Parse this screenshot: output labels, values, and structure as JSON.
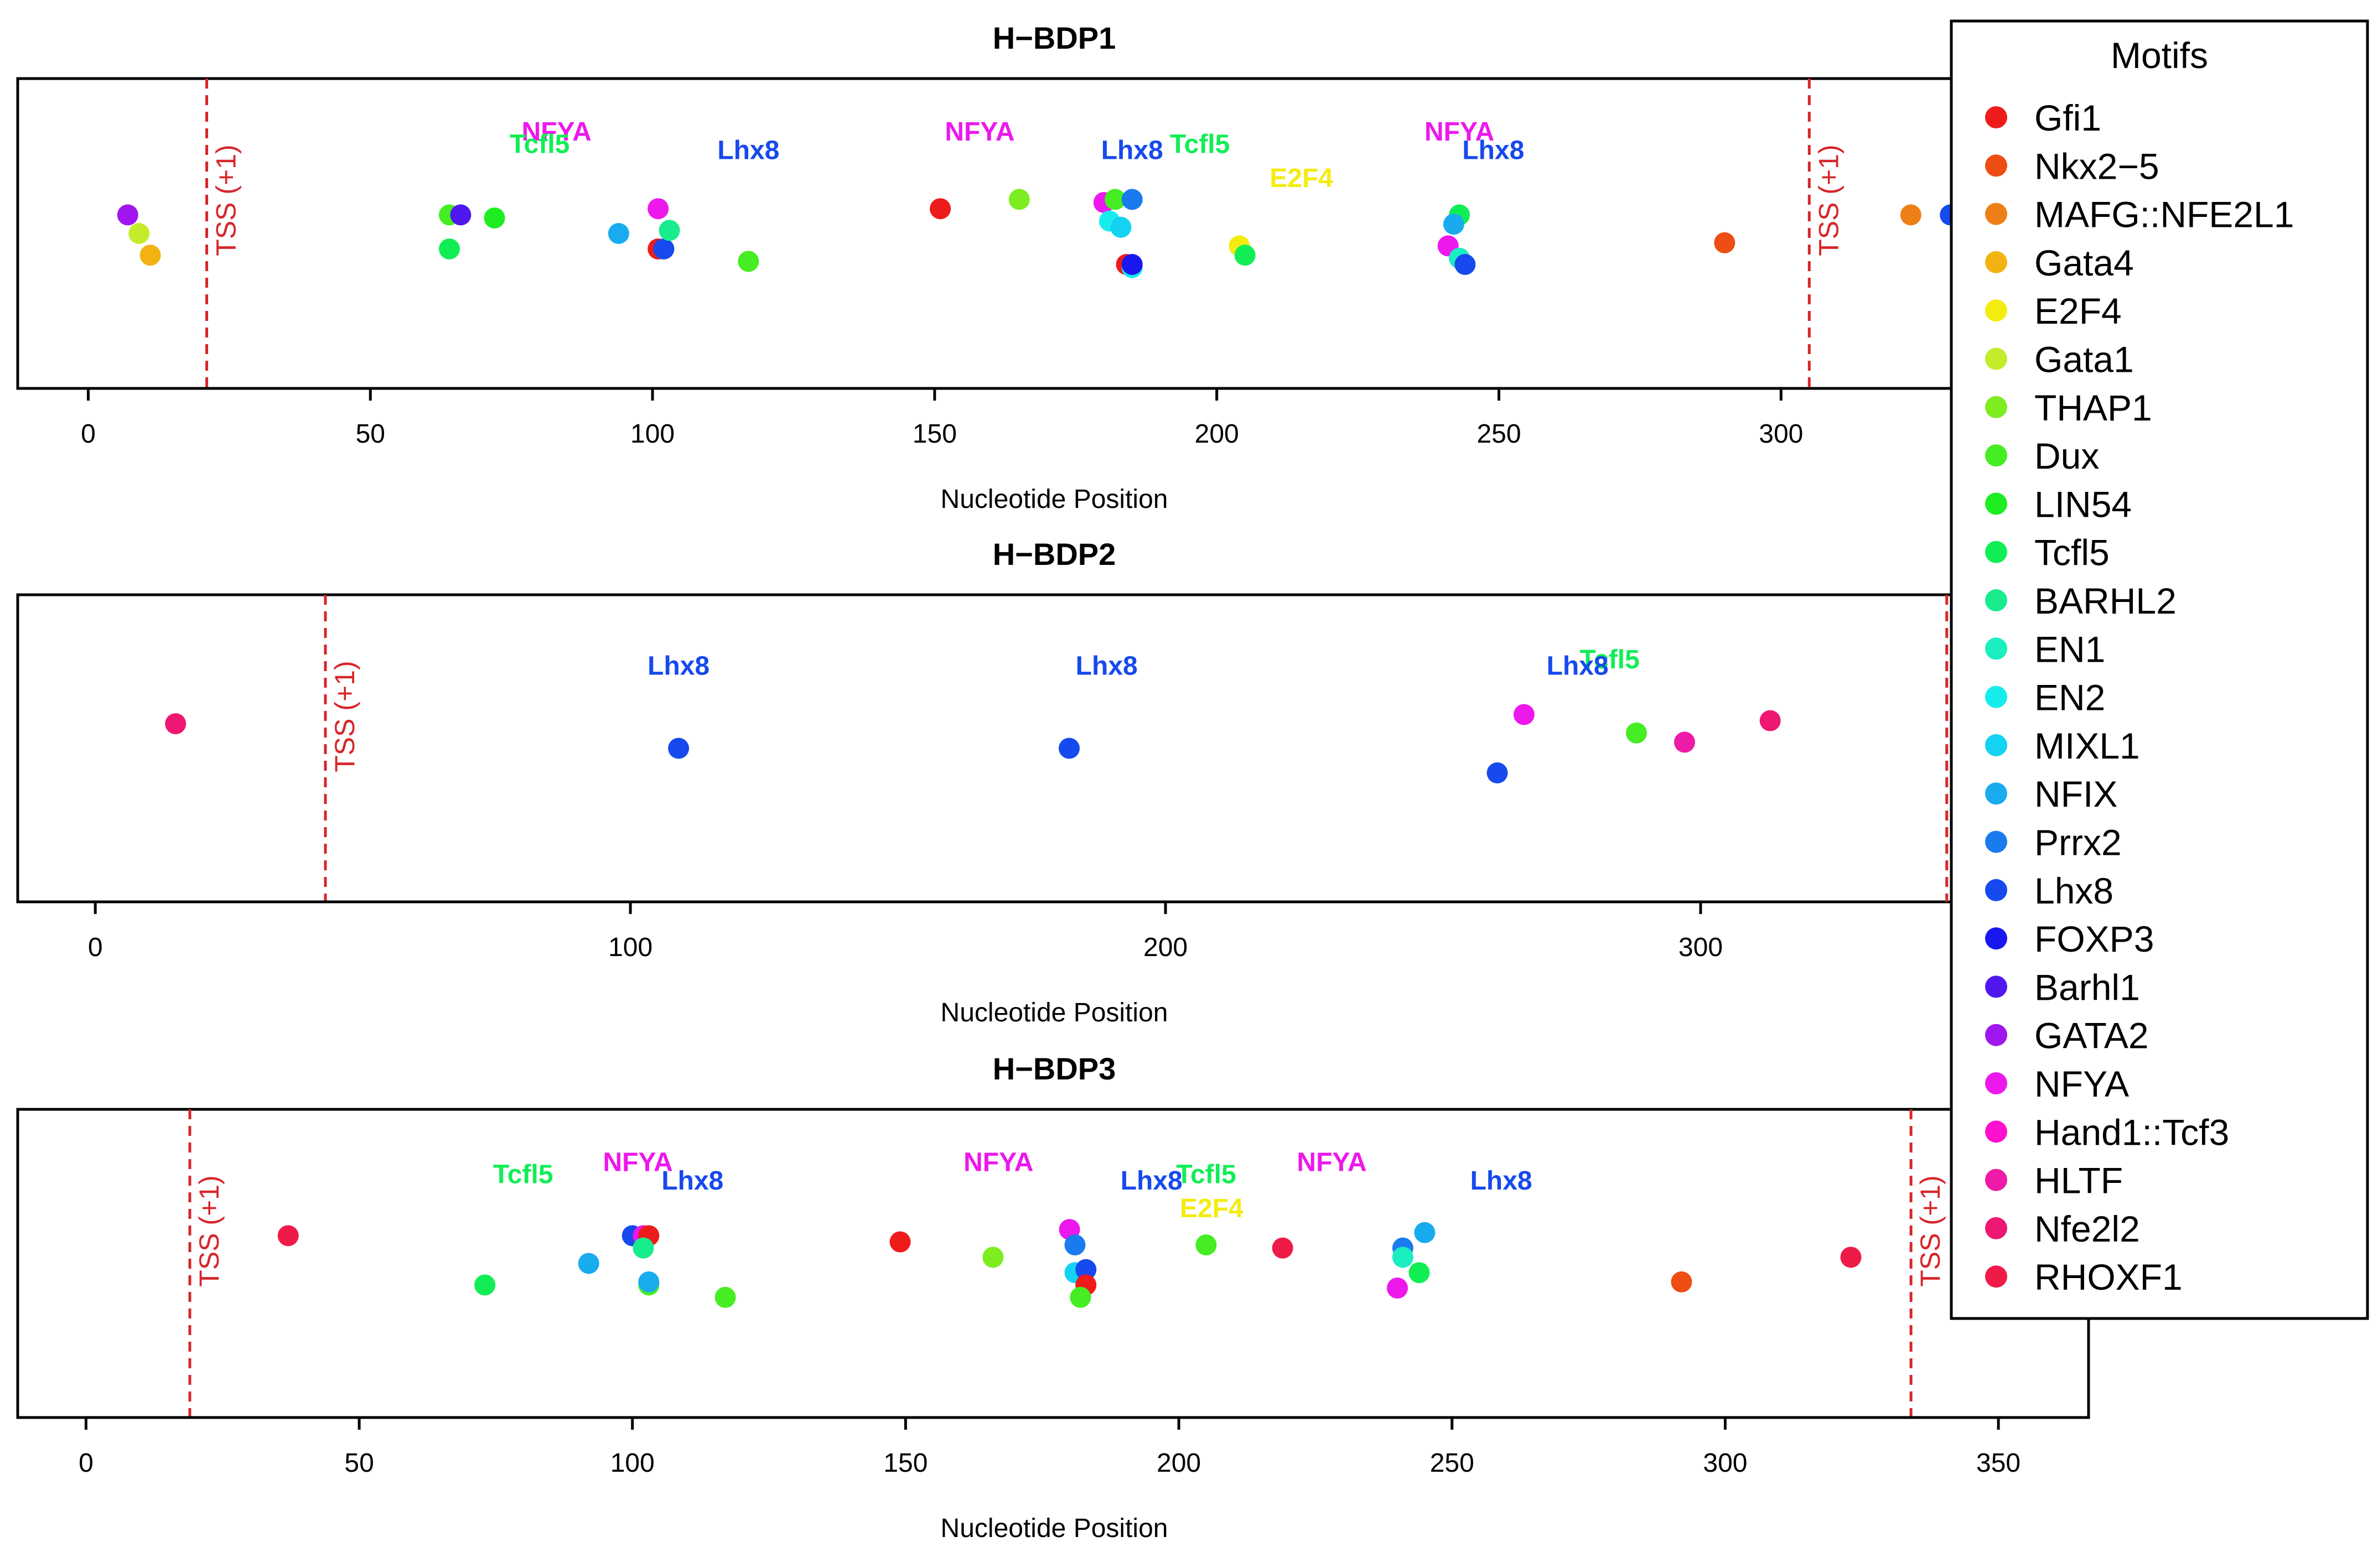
{
  "figure": {
    "legend_title": "Motifs"
  },
  "legend": [
    {
      "label": "Gfi1",
      "color": "#ee1b1b"
    },
    {
      "label": "Nkx2−5",
      "color": "#ee4d13"
    },
    {
      "label": "MAFG::NFE2L1",
      "color": "#ee7f16"
    },
    {
      "label": "Gata4",
      "color": "#f2b312"
    },
    {
      "label": "E2F4",
      "color": "#f4ec10"
    },
    {
      "label": "Gata1",
      "color": "#c5ec2a"
    },
    {
      "label": "THAP1",
      "color": "#7ded22"
    },
    {
      "label": "Dux",
      "color": "#45ed22"
    },
    {
      "label": "LIN54",
      "color": "#1eed22"
    },
    {
      "label": "Tcfl5",
      "color": "#11ee55"
    },
    {
      "label": "BARHL2",
      "color": "#19ec8c"
    },
    {
      "label": "EN1",
      "color": "#1beec1"
    },
    {
      "label": "EN2",
      "color": "#17ecec"
    },
    {
      "label": "MIXL1",
      "color": "#14d2f2"
    },
    {
      "label": "NFIX",
      "color": "#18acee"
    },
    {
      "label": "Prrx2",
      "color": "#1a7bee"
    },
    {
      "label": "Lhx8",
      "color": "#1649ee"
    },
    {
      "label": "FOXP3",
      "color": "#1818ee"
    },
    {
      "label": "Barhl1",
      "color": "#5018ee"
    },
    {
      "label": "GATA2",
      "color": "#a016ee"
    },
    {
      "label": "NFYA",
      "color": "#ec18ec"
    },
    {
      "label": "Hand1::Tcf3",
      "color": "#ff10cf"
    },
    {
      "label": "HLTF",
      "color": "#ee1aa8"
    },
    {
      "label": "Nfe2l2",
      "color": "#ee1771"
    },
    {
      "label": "RHOXF1",
      "color": "#ee1b49"
    }
  ],
  "chart_data": [
    {
      "type": "scatter",
      "title": "H−BDP1",
      "xlabel": "Nucleotide Position",
      "ylabel": "",
      "xlim": [
        -12.5,
        354.5
      ],
      "ylim": [
        0,
        1
      ],
      "xticks": [
        0,
        50,
        100,
        150,
        200,
        250,
        300
      ],
      "tss_label": "TSS (+1)",
      "tss_positions": [
        21,
        305
      ],
      "points": [
        {
          "x": 7,
          "y": 0.56,
          "motif": "GATA2"
        },
        {
          "x": 9,
          "y": 0.5,
          "motif": "Gata1"
        },
        {
          "x": 11,
          "y": 0.43,
          "motif": "Gata4"
        },
        {
          "x": 64,
          "y": 0.56,
          "motif": "Dux"
        },
        {
          "x": 64,
          "y": 0.45,
          "motif": "Tcfl5"
        },
        {
          "x": 66,
          "y": 0.56,
          "motif": "Barhl1"
        },
        {
          "x": 72,
          "y": 0.55,
          "motif": "LIN54"
        },
        {
          "x": 94,
          "y": 0.5,
          "motif": "NFIX"
        },
        {
          "x": 101,
          "y": 0.58,
          "motif": "NFYA"
        },
        {
          "x": 101,
          "y": 0.45,
          "motif": "Gfi1"
        },
        {
          "x": 102,
          "y": 0.45,
          "motif": "Lhx8"
        },
        {
          "x": 103,
          "y": 0.51,
          "motif": "BARHL2"
        },
        {
          "x": 117,
          "y": 0.41,
          "motif": "Dux"
        },
        {
          "x": 151,
          "y": 0.58,
          "motif": "Gfi1"
        },
        {
          "x": 165,
          "y": 0.61,
          "motif": "THAP1"
        },
        {
          "x": 180,
          "y": 0.6,
          "motif": "NFYA"
        },
        {
          "x": 181,
          "y": 0.54,
          "motif": "EN2"
        },
        {
          "x": 182,
          "y": 0.61,
          "motif": "Dux"
        },
        {
          "x": 183,
          "y": 0.52,
          "motif": "MIXL1"
        },
        {
          "x": 184,
          "y": 0.4,
          "motif": "Gfi1"
        },
        {
          "x": 185,
          "y": 0.39,
          "motif": "EN2"
        },
        {
          "x": 185,
          "y": 0.61,
          "motif": "Prrx2"
        },
        {
          "x": 185,
          "y": 0.4,
          "motif": "FOXP3"
        },
        {
          "x": 204,
          "y": 0.46,
          "motif": "E2F4"
        },
        {
          "x": 205,
          "y": 0.43,
          "motif": "Tcfl5"
        },
        {
          "x": 243,
          "y": 0.56,
          "motif": "Tcfl5"
        },
        {
          "x": 242,
          "y": 0.53,
          "motif": "NFIX"
        },
        {
          "x": 241,
          "y": 0.46,
          "motif": "NFYA"
        },
        {
          "x": 243,
          "y": 0.42,
          "motif": "EN1"
        },
        {
          "x": 244,
          "y": 0.4,
          "motif": "Lhx8"
        },
        {
          "x": 290,
          "y": 0.47,
          "motif": "Nkx2−5"
        },
        {
          "x": 323,
          "y": 0.56,
          "motif": "MAFG::NFE2L1"
        },
        {
          "x": 330,
          "y": 0.56,
          "motif": "Lhx8"
        }
      ],
      "annotations": [
        {
          "text": "NFYA",
          "x": 83,
          "y": 0.8,
          "motif": "NFYA"
        },
        {
          "text": "Tcfl5",
          "x": 80,
          "y": 0.76,
          "motif": "Tcfl5"
        },
        {
          "text": "Lhx8",
          "x": 117,
          "y": 0.74,
          "motif": "Lhx8"
        },
        {
          "text": "NFYA",
          "x": 158,
          "y": 0.8,
          "motif": "NFYA"
        },
        {
          "text": "Lhx8",
          "x": 185,
          "y": 0.74,
          "motif": "Lhx8"
        },
        {
          "text": "Tcfl5",
          "x": 197,
          "y": 0.76,
          "motif": "Tcfl5"
        },
        {
          "text": "E2F4",
          "x": 215,
          "y": 0.65,
          "motif": "E2F4"
        },
        {
          "text": "NFYA",
          "x": 243,
          "y": 0.8,
          "motif": "NFYA"
        },
        {
          "text": "Lhx8",
          "x": 249,
          "y": 0.74,
          "motif": "Lhx8"
        }
      ]
    },
    {
      "type": "scatter",
      "title": "H−BDP2",
      "xlabel": "Nucleotide Position",
      "ylabel": "",
      "xlim": [
        -14.5,
        372.5
      ],
      "ylim": [
        0,
        1
      ],
      "xticks": [
        0,
        100,
        200,
        300
      ],
      "tss_label": "TSS (+1)",
      "tss_positions": [
        43,
        346
      ],
      "points": [
        {
          "x": 15,
          "y": 0.58,
          "motif": "Nfe2l2"
        },
        {
          "x": 109,
          "y": 0.5,
          "motif": "Lhx8"
        },
        {
          "x": 182,
          "y": 0.5,
          "motif": "Lhx8"
        },
        {
          "x": 262,
          "y": 0.42,
          "motif": "Lhx8"
        },
        {
          "x": 267,
          "y": 0.61,
          "motif": "NFYA"
        },
        {
          "x": 288,
          "y": 0.55,
          "motif": "Dux"
        },
        {
          "x": 297,
          "y": 0.52,
          "motif": "HLTF"
        },
        {
          "x": 313,
          "y": 0.59,
          "motif": "Nfe2l2"
        }
      ],
      "annotations": [
        {
          "text": "Lhx8",
          "x": 109,
          "y": 0.74,
          "motif": "Lhx8"
        },
        {
          "text": "Lhx8",
          "x": 189,
          "y": 0.74,
          "motif": "Lhx8"
        },
        {
          "text": "Tcfl5",
          "x": 283,
          "y": 0.76,
          "motif": "Tcfl5"
        },
        {
          "text": "Lhx8",
          "x": 277,
          "y": 0.74,
          "motif": "Lhx8"
        }
      ]
    },
    {
      "type": "scatter",
      "title": "H−BDP3",
      "xlabel": "Nucleotide Position",
      "ylabel": "",
      "xlim": [
        -12.5,
        366.5
      ],
      "ylim": [
        0,
        1
      ],
      "xticks": [
        0,
        50,
        100,
        150,
        200,
        250,
        300,
        350
      ],
      "tss_label": "TSS (+1)",
      "tss_positions": [
        19,
        334
      ],
      "points": [
        {
          "x": 37,
          "y": 0.59,
          "motif": "RHOXF1"
        },
        {
          "x": 73,
          "y": 0.43,
          "motif": "Tcfl5"
        },
        {
          "x": 92,
          "y": 0.5,
          "motif": "NFIX"
        },
        {
          "x": 100,
          "y": 0.59,
          "motif": "Lhx8"
        },
        {
          "x": 102,
          "y": 0.59,
          "motif": "NFYA"
        },
        {
          "x": 103,
          "y": 0.59,
          "motif": "Gfi1"
        },
        {
          "x": 102,
          "y": 0.55,
          "motif": "BARHL2"
        },
        {
          "x": 103,
          "y": 0.43,
          "motif": "Dux"
        },
        {
          "x": 103,
          "y": 0.44,
          "motif": "NFIX"
        },
        {
          "x": 117,
          "y": 0.39,
          "motif": "Dux"
        },
        {
          "x": 149,
          "y": 0.57,
          "motif": "Gfi1"
        },
        {
          "x": 166,
          "y": 0.52,
          "motif": "THAP1"
        },
        {
          "x": 180,
          "y": 0.61,
          "motif": "NFYA"
        },
        {
          "x": 181,
          "y": 0.56,
          "motif": "Prrx2"
        },
        {
          "x": 181,
          "y": 0.47,
          "motif": "MIXL1"
        },
        {
          "x": 183,
          "y": 0.48,
          "motif": "Lhx8"
        },
        {
          "x": 183,
          "y": 0.43,
          "motif": "Gfi1"
        },
        {
          "x": 182,
          "y": 0.39,
          "motif": "Dux"
        },
        {
          "x": 205,
          "y": 0.56,
          "motif": "Dux"
        },
        {
          "x": 219,
          "y": 0.55,
          "motif": "RHOXF1"
        },
        {
          "x": 241,
          "y": 0.55,
          "motif": "Prrx2"
        },
        {
          "x": 245,
          "y": 0.6,
          "motif": "NFIX"
        },
        {
          "x": 244,
          "y": 0.47,
          "motif": "Tcfl5"
        },
        {
          "x": 241,
          "y": 0.52,
          "motif": "EN1"
        },
        {
          "x": 240,
          "y": 0.42,
          "motif": "NFYA"
        },
        {
          "x": 292,
          "y": 0.44,
          "motif": "Nkx2−5"
        },
        {
          "x": 323,
          "y": 0.52,
          "motif": "RHOXF1"
        }
      ],
      "annotations": [
        {
          "text": "Tcfl5",
          "x": 80,
          "y": 0.76,
          "motif": "Tcfl5"
        },
        {
          "text": "NFYA",
          "x": 101,
          "y": 0.8,
          "motif": "NFYA"
        },
        {
          "text": "Lhx8",
          "x": 111,
          "y": 0.74,
          "motif": "Lhx8"
        },
        {
          "text": "NFYA",
          "x": 167,
          "y": 0.8,
          "motif": "NFYA"
        },
        {
          "text": "Lhx8",
          "x": 195,
          "y": 0.74,
          "motif": "Lhx8"
        },
        {
          "text": "Tcfl5",
          "x": 205,
          "y": 0.76,
          "motif": "Tcfl5"
        },
        {
          "text": "E2F4",
          "x": 206,
          "y": 0.65,
          "motif": "E2F4"
        },
        {
          "text": "NFYA",
          "x": 228,
          "y": 0.8,
          "motif": "NFYA"
        },
        {
          "text": "Lhx8",
          "x": 259,
          "y": 0.74,
          "motif": "Lhx8"
        }
      ]
    }
  ]
}
